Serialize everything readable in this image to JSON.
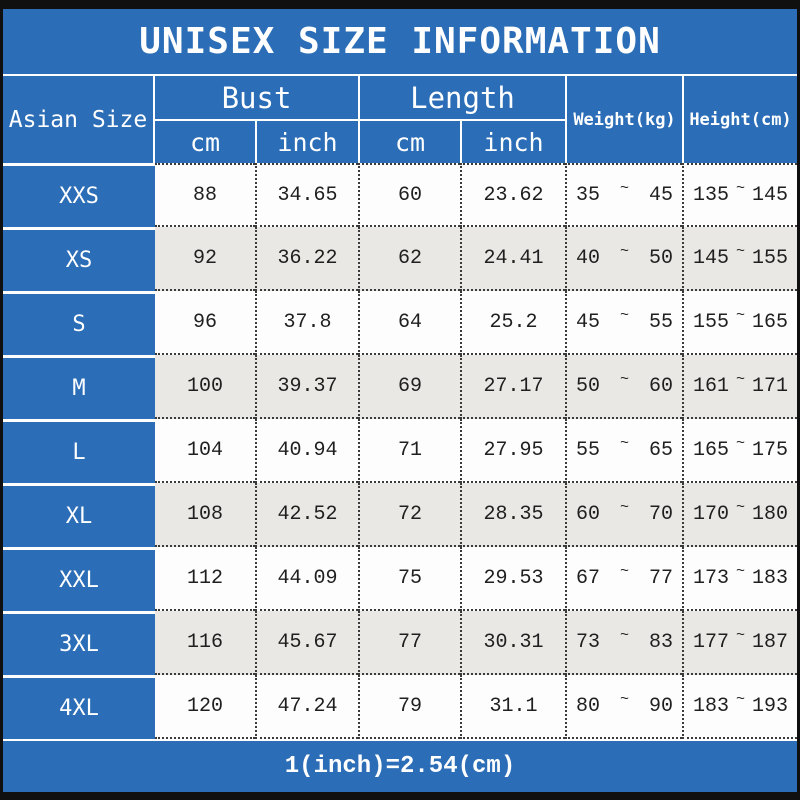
{
  "colors": {
    "blue": "#2b6db6",
    "row_white": "#fdfdfd",
    "row_alt": "#e9e8e5",
    "border_black": "#101010",
    "dotted_border": "#3a3a3a",
    "text_white": "#ffffff",
    "text_dark": "#1f1f1f"
  },
  "chart_data": {
    "type": "table",
    "title": "UNISEX SIZE INFORMATION",
    "corner_header": "Asian Size",
    "column_groups": [
      {
        "label": "Bust",
        "sub": [
          "cm",
          "inch"
        ]
      },
      {
        "label": "Length",
        "sub": [
          "cm",
          "inch"
        ]
      }
    ],
    "single_columns": [
      "Weight(kg)",
      "Height(cm)"
    ],
    "range_separator": "~",
    "rows": [
      {
        "size": "XXS",
        "bust_cm": "88",
        "bust_inch": "34.65",
        "length_cm": "60",
        "length_inch": "23.62",
        "weight_min": "35",
        "weight_max": "45",
        "height_min": "135",
        "height_max": "145"
      },
      {
        "size": "XS",
        "bust_cm": "92",
        "bust_inch": "36.22",
        "length_cm": "62",
        "length_inch": "24.41",
        "weight_min": "40",
        "weight_max": "50",
        "height_min": "145",
        "height_max": "155"
      },
      {
        "size": "S",
        "bust_cm": "96",
        "bust_inch": "37.8",
        "length_cm": "64",
        "length_inch": "25.2",
        "weight_min": "45",
        "weight_max": "55",
        "height_min": "155",
        "height_max": "165"
      },
      {
        "size": "M",
        "bust_cm": "100",
        "bust_inch": "39.37",
        "length_cm": "69",
        "length_inch": "27.17",
        "weight_min": "50",
        "weight_max": "60",
        "height_min": "161",
        "height_max": "171"
      },
      {
        "size": "L",
        "bust_cm": "104",
        "bust_inch": "40.94",
        "length_cm": "71",
        "length_inch": "27.95",
        "weight_min": "55",
        "weight_max": "65",
        "height_min": "165",
        "height_max": "175"
      },
      {
        "size": "XL",
        "bust_cm": "108",
        "bust_inch": "42.52",
        "length_cm": "72",
        "length_inch": "28.35",
        "weight_min": "60",
        "weight_max": "70",
        "height_min": "170",
        "height_max": "180"
      },
      {
        "size": "XXL",
        "bust_cm": "112",
        "bust_inch": "44.09",
        "length_cm": "75",
        "length_inch": "29.53",
        "weight_min": "67",
        "weight_max": "77",
        "height_min": "173",
        "height_max": "183"
      },
      {
        "size": "3XL",
        "bust_cm": "116",
        "bust_inch": "45.67",
        "length_cm": "77",
        "length_inch": "30.31",
        "weight_min": "73",
        "weight_max": "83",
        "height_min": "177",
        "height_max": "187"
      },
      {
        "size": "4XL",
        "bust_cm": "120",
        "bust_inch": "47.24",
        "length_cm": "79",
        "length_inch": "31.1",
        "weight_min": "80",
        "weight_max": "90",
        "height_min": "183",
        "height_max": "193"
      }
    ],
    "note": "1(inch)=2.54(cm)"
  }
}
